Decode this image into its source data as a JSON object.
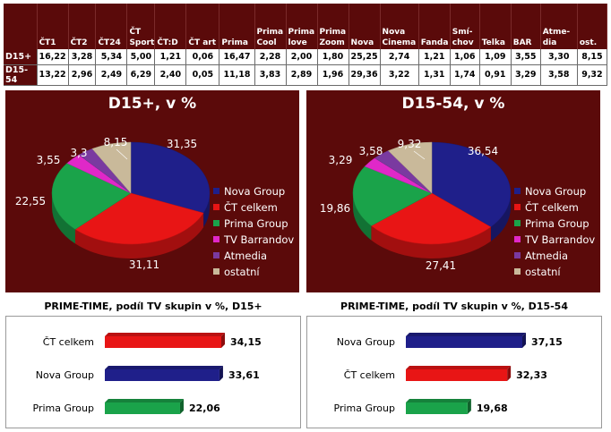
{
  "table": {
    "headers": [
      "",
      "ČT1",
      "ČT2",
      "ČT24",
      "ČT\nSport",
      "ČT:D",
      "ČT art",
      "Prima",
      "Prima\nCool",
      "Prima\nlove",
      "Prima\nZoom",
      "Nova",
      "Nova\nCinema",
      "Fanda",
      "Smí-\nchov",
      "Telka",
      "BAR",
      "Atme-\ndia",
      "ost."
    ],
    "rows": [
      {
        "label": "D15+",
        "values": [
          "16,22",
          "3,28",
          "5,34",
          "5,00",
          "1,21",
          "0,06",
          "16,47",
          "2,28",
          "2,00",
          "1,80",
          "25,25",
          "2,74",
          "1,21",
          "1,06",
          "1,09",
          "3,55",
          "3,30",
          "8,15"
        ]
      },
      {
        "label": "D15-54",
        "values": [
          "13,22",
          "2,96",
          "2,49",
          "6,29",
          "2,40",
          "0,05",
          "11,18",
          "3,83",
          "2,89",
          "1,96",
          "29,36",
          "3,22",
          "1,31",
          "1,74",
          "0,91",
          "3,29",
          "3,58",
          "9,32"
        ]
      }
    ]
  },
  "chart_data": [
    {
      "type": "pie",
      "title": "D15+, v %",
      "categories": [
        "Nova Group",
        "ČT celkem",
        "Prima Group",
        "TV Barrandov",
        "Atmedia",
        "ostatní"
      ],
      "values": [
        31.35,
        31.11,
        22.55,
        3.55,
        3.3,
        8.15
      ],
      "labels": [
        "31,35",
        "31,11",
        "22,55",
        "3,55",
        "3,3",
        "8,15"
      ],
      "legend": "right"
    },
    {
      "type": "pie",
      "title": "D15-54, v %",
      "categories": [
        "Nova Group",
        "ČT celkem",
        "Prima Group",
        "TV Barrandov",
        "Atmedia",
        "ostatní"
      ],
      "values": [
        36.54,
        27.41,
        19.86,
        3.29,
        3.58,
        9.32
      ],
      "labels": [
        "36,54",
        "27,41",
        "19,86",
        "3,29",
        "3,58",
        "9,32"
      ],
      "legend": "right"
    },
    {
      "type": "bar",
      "title": "PRIME-TIME, podíl TV skupin v %, D15+",
      "categories": [
        "ČT celkem",
        "Nova Group",
        "Prima Group"
      ],
      "values": [
        34.15,
        33.61,
        22.06
      ],
      "labels": [
        "34,15",
        "33,61",
        "22,06"
      ]
    },
    {
      "type": "bar",
      "title": "PRIME-TIME, podíl TV skupin v %, D15-54",
      "categories": [
        "Nova Group",
        "ČT celkem",
        "Prima Group"
      ],
      "values": [
        37.15,
        32.33,
        19.68
      ],
      "labels": [
        "37,15",
        "32,33",
        "19,68"
      ]
    }
  ],
  "colors": {
    "Nova Group": "#1f1f8a",
    "ČT celkem": "#e81515",
    "Prima Group": "#1aa34a",
    "TV Barrandov": "#e028c8",
    "Atmedia": "#7a3aa0",
    "ostatní": "#c9b99a",
    "panel": "#5b0a0a"
  }
}
